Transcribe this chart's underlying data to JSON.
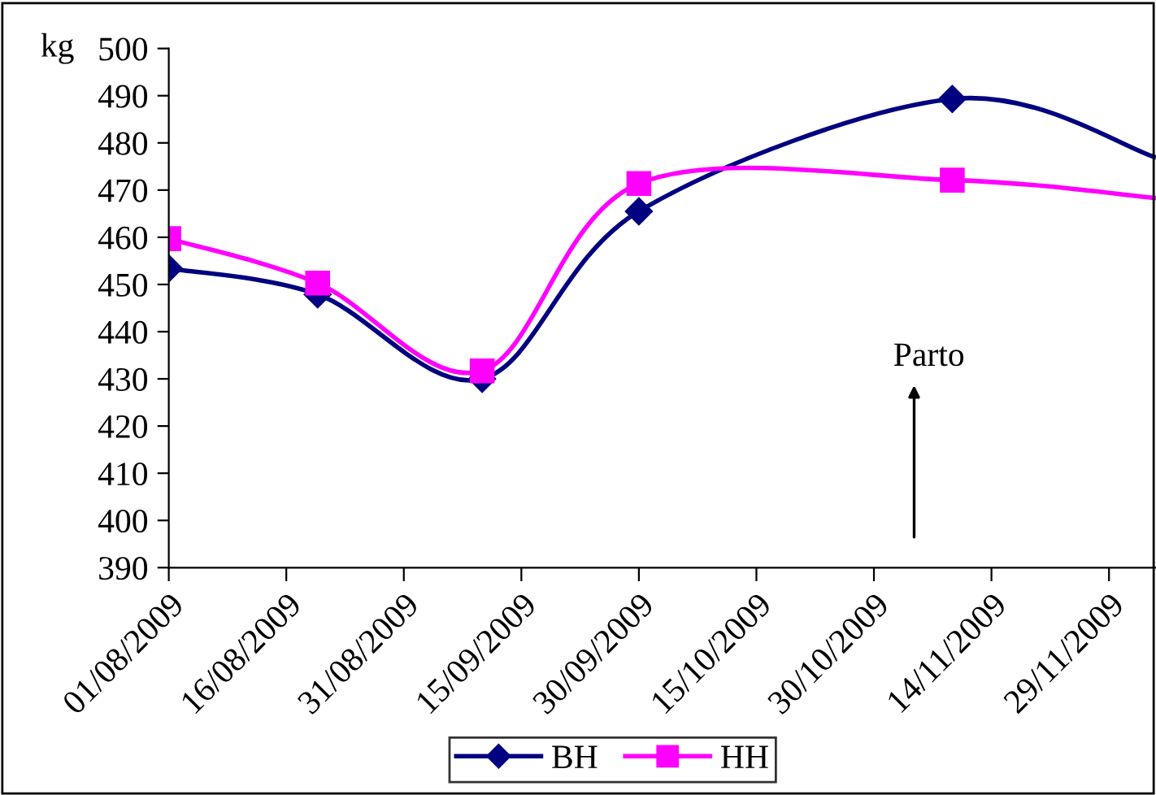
{
  "chart_data": {
    "type": "line",
    "ylabel": "kg",
    "x": [
      "2009-08-01",
      "2009-08-20",
      "2009-09-10",
      "2009-09-30",
      "2009-11-09",
      "2009-12-05"
    ],
    "series": [
      {
        "name": "BH",
        "color": "#000080",
        "marker": "diamond",
        "values": [
          453.4,
          447.9,
          430.0,
          465.5,
          489.3,
          476.9
        ]
      },
      {
        "name": "HH",
        "color": "#ff00ff",
        "marker": "square",
        "values": [
          459.7,
          450.3,
          431.7,
          471.4,
          472.1,
          468.3
        ]
      }
    ],
    "xlim": [
      "2009-08-01",
      "2009-12-05"
    ],
    "xticks": [
      {
        "value": "2009-08-01",
        "label": "01/08/2009"
      },
      {
        "value": "2009-08-16",
        "label": "16/08/2009"
      },
      {
        "value": "2009-08-31",
        "label": "31/08/2009"
      },
      {
        "value": "2009-09-15",
        "label": "15/09/2009"
      },
      {
        "value": "2009-09-30",
        "label": "30/09/2009"
      },
      {
        "value": "2009-10-15",
        "label": "15/10/2009"
      },
      {
        "value": "2009-10-30",
        "label": "30/10/2009"
      },
      {
        "value": "2009-11-14",
        "label": "14/11/2009"
      },
      {
        "value": "2009-11-29",
        "label": "29/11/2009"
      }
    ],
    "ylim": [
      390,
      500
    ],
    "yticks": [
      390,
      400,
      410,
      420,
      430,
      440,
      450,
      460,
      470,
      480,
      490,
      500
    ],
    "annotations": [
      "Parto"
    ],
    "grid": false,
    "legend": "bottom",
    "line_style": "solid"
  }
}
